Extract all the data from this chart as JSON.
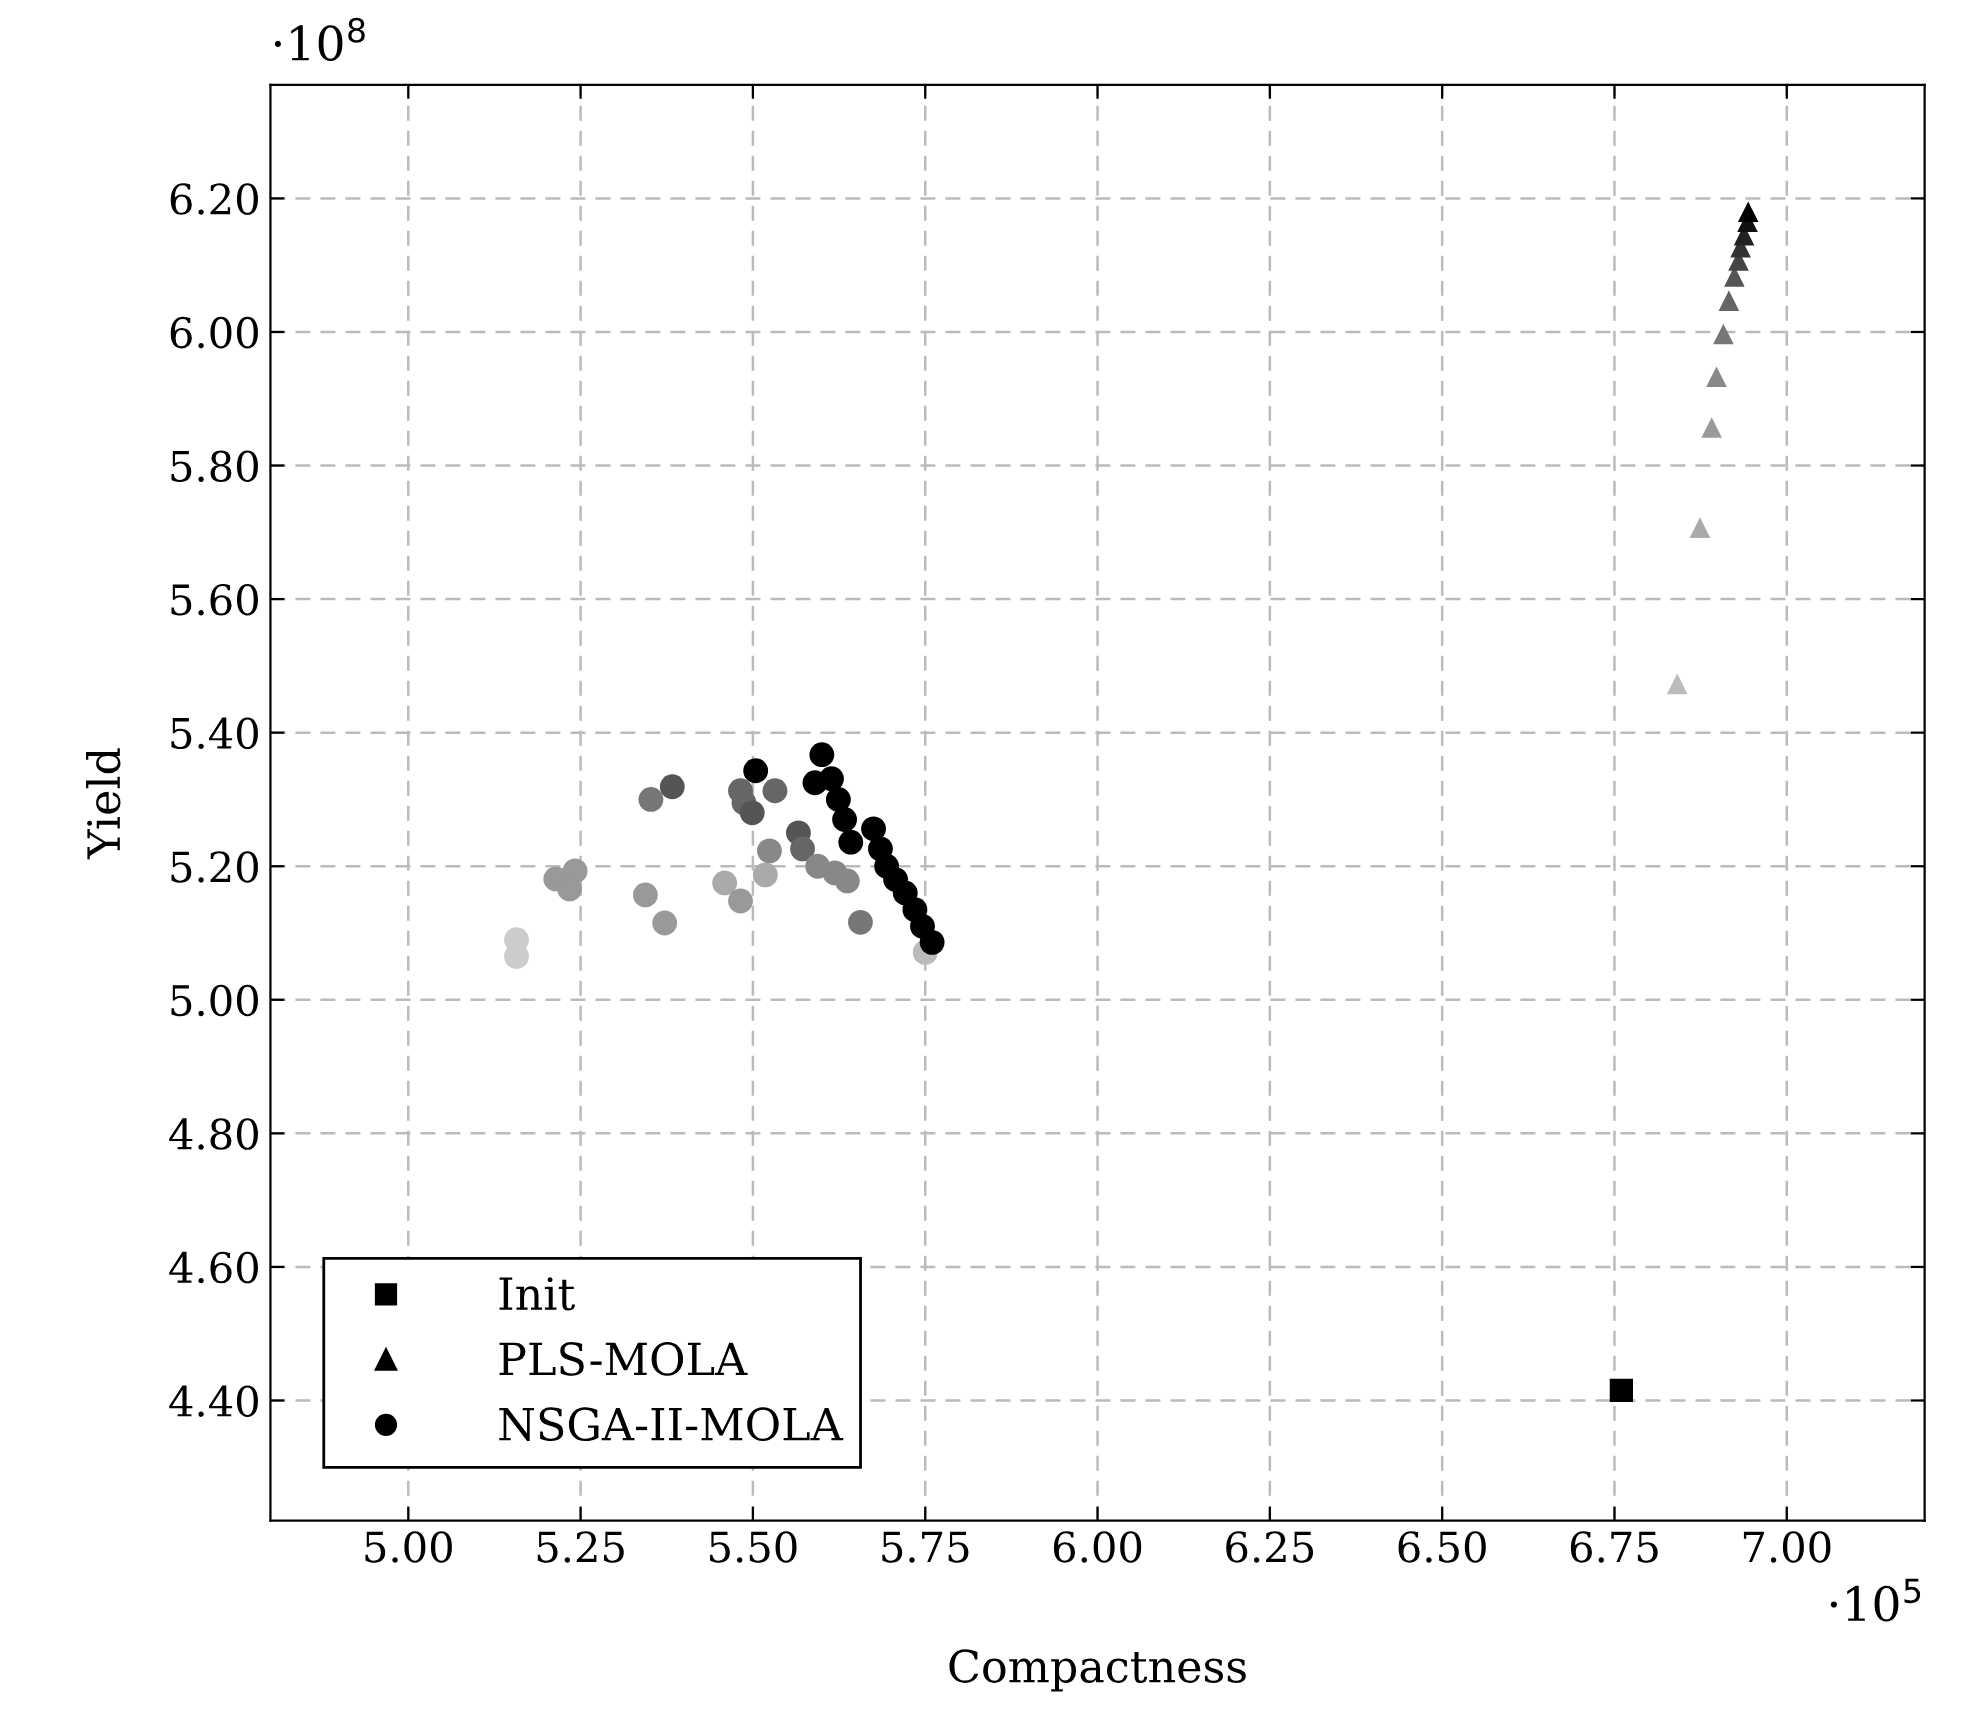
{
  "chart_data": {
    "type": "scatter",
    "xlabel": "Compactness",
    "ylabel": "Yield",
    "annotations": [
      "·10$^{8}$",
      "·10$^{5}$"
    ],
    "xlim": [
      4.8,
      7.2
    ],
    "ylim": [
      4.22,
      6.37
    ],
    "xticks": [
      {
        "value": 5.0,
        "label": "5.00"
      },
      {
        "value": 5.25,
        "label": "5.25"
      },
      {
        "value": 5.5,
        "label": "5.50"
      },
      {
        "value": 5.75,
        "label": "5.75"
      },
      {
        "value": 6.0,
        "label": "6.00"
      },
      {
        "value": 6.25,
        "label": "6.25"
      },
      {
        "value": 6.5,
        "label": "6.50"
      },
      {
        "value": 6.75,
        "label": "6.75"
      },
      {
        "value": 7.0,
        "label": "7.00"
      }
    ],
    "yticks": [
      {
        "value": 4.4,
        "label": "4.40"
      },
      {
        "value": 4.6,
        "label": "4.60"
      },
      {
        "value": 4.8,
        "label": "4.80"
      },
      {
        "value": 5.0,
        "label": "5.00"
      },
      {
        "value": 5.2,
        "label": "5.20"
      },
      {
        "value": 5.4,
        "label": "5.40"
      },
      {
        "value": 5.6,
        "label": "5.60"
      },
      {
        "value": 5.8,
        "label": "5.80"
      },
      {
        "value": 6.0,
        "label": "6.00"
      },
      {
        "value": 6.2,
        "label": "6.20"
      }
    ],
    "grid": true,
    "legend": "bottom left",
    "series": [
      {
        "name": "Init",
        "marker": "square",
        "color": "#000000",
        "x": [
          6.76
        ],
        "values": [
          4.415
        ]
      },
      {
        "name": "PLS-MOLA",
        "marker": "triangle",
        "color": "#000000",
        "x": [
          6.841,
          6.874,
          6.891,
          6.898,
          6.908,
          6.916,
          6.924,
          6.93,
          6.933,
          6.938,
          6.943,
          6.944
        ],
        "values": [
          5.473,
          5.707,
          5.857,
          5.933,
          5.997,
          6.047,
          6.083,
          6.107,
          6.127,
          6.145,
          6.165,
          6.18
        ],
        "colors": [
          "#bbbbbb",
          "#aaaaaa",
          "#999999",
          "#888888",
          "#777777",
          "#666666",
          "#555555",
          "#444444",
          "#333333",
          "#222222",
          "#111111",
          "#000000"
        ]
      },
      {
        "name": "NSGA-II-MOLA",
        "marker": "circle",
        "color": "#000000",
        "x": [
          5.157,
          5.157,
          5.214,
          5.242,
          5.234,
          5.344,
          5.372,
          5.352,
          5.383,
          5.459,
          5.482,
          5.518,
          5.524,
          5.482,
          5.487,
          5.499,
          5.532,
          5.566,
          5.572,
          5.594,
          5.619,
          5.656,
          5.637,
          5.75,
          5.504,
          5.59,
          5.6,
          5.614,
          5.624,
          5.633,
          5.642,
          5.675,
          5.685,
          5.694,
          5.707,
          5.721,
          5.735,
          5.746,
          5.76
        ],
        "values": [
          5.065,
          5.09,
          5.181,
          5.193,
          5.166,
          5.157,
          5.115,
          5.3,
          5.319,
          5.175,
          5.148,
          5.187,
          5.223,
          5.313,
          5.295,
          5.28,
          5.313,
          5.25,
          5.226,
          5.2,
          5.19,
          5.116,
          5.178,
          5.071,
          5.343,
          5.325,
          5.367,
          5.331,
          5.3,
          5.27,
          5.236,
          5.256,
          5.226,
          5.2,
          5.18,
          5.16,
          5.135,
          5.11,
          5.086
        ],
        "colors": [
          "#cccccc",
          "#cccccc",
          "#999999",
          "#999999",
          "#999999",
          "#999999",
          "#999999",
          "#777777",
          "#555555",
          "#aaaaaa",
          "#999999",
          "#aaaaaa",
          "#888888",
          "#666666",
          "#666666",
          "#555555",
          "#666666",
          "#555555",
          "#666666",
          "#888888",
          "#888888",
          "#777777",
          "#888888",
          "#bbbbbb",
          "#000000",
          "#000000",
          "#000000",
          "#000000",
          "#000000",
          "#000000",
          "#000000",
          "#000000",
          "#000000",
          "#000000",
          "#000000",
          "#000000",
          "#000000",
          "#000000",
          "#000000"
        ]
      }
    ]
  }
}
